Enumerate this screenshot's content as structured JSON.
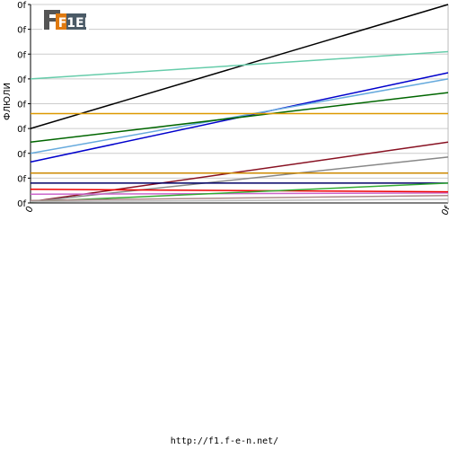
{
  "footer": {
    "url": "http://f1.f-e-n.net/"
  },
  "logo": {
    "text": "F1EN"
  },
  "chart_data": {
    "type": "line",
    "ylabel": "ФЛЮЛИ",
    "y_tick_labels": [
      "0f",
      "0f",
      "0f",
      "0f",
      "0f",
      "0f",
      "0f",
      "0f",
      "0f"
    ],
    "x_tick_labels": [
      "0",
      "0f"
    ],
    "xlim": [
      0,
      1
    ],
    "ylim": [
      0,
      8
    ],
    "grid": true,
    "series": [
      {
        "color": "#000000",
        "values": [
          3.0,
          8.0
        ]
      },
      {
        "color": "#66ccaa",
        "values": [
          5.0,
          6.1
        ]
      },
      {
        "color": "#0000cc",
        "values": [
          1.65,
          5.25
        ]
      },
      {
        "color": "#66aadd",
        "values": [
          2.0,
          5.0
        ]
      },
      {
        "color": "#006600",
        "values": [
          2.45,
          4.45
        ]
      },
      {
        "color": "#dd9900",
        "values": [
          3.6,
          3.6
        ]
      },
      {
        "color": "#881122",
        "values": [
          0.05,
          2.45
        ]
      },
      {
        "color": "#888888",
        "values": [
          0.05,
          1.85
        ]
      },
      {
        "color": "#cc8800",
        "values": [
          1.2,
          1.2
        ]
      },
      {
        "color": "#000066",
        "values": [
          0.8,
          0.8
        ]
      },
      {
        "color": "#cc66cc",
        "values": [
          0.35,
          0.4
        ]
      },
      {
        "color": "#ee0000",
        "values": [
          0.55,
          0.45
        ]
      },
      {
        "color": "#33aa33",
        "values": [
          0.05,
          0.8
        ]
      },
      {
        "color": "#aa8888",
        "values": [
          0.1,
          0.3
        ]
      },
      {
        "color": "#bbbbbb",
        "values": [
          0.05,
          0.15
        ]
      }
    ]
  }
}
